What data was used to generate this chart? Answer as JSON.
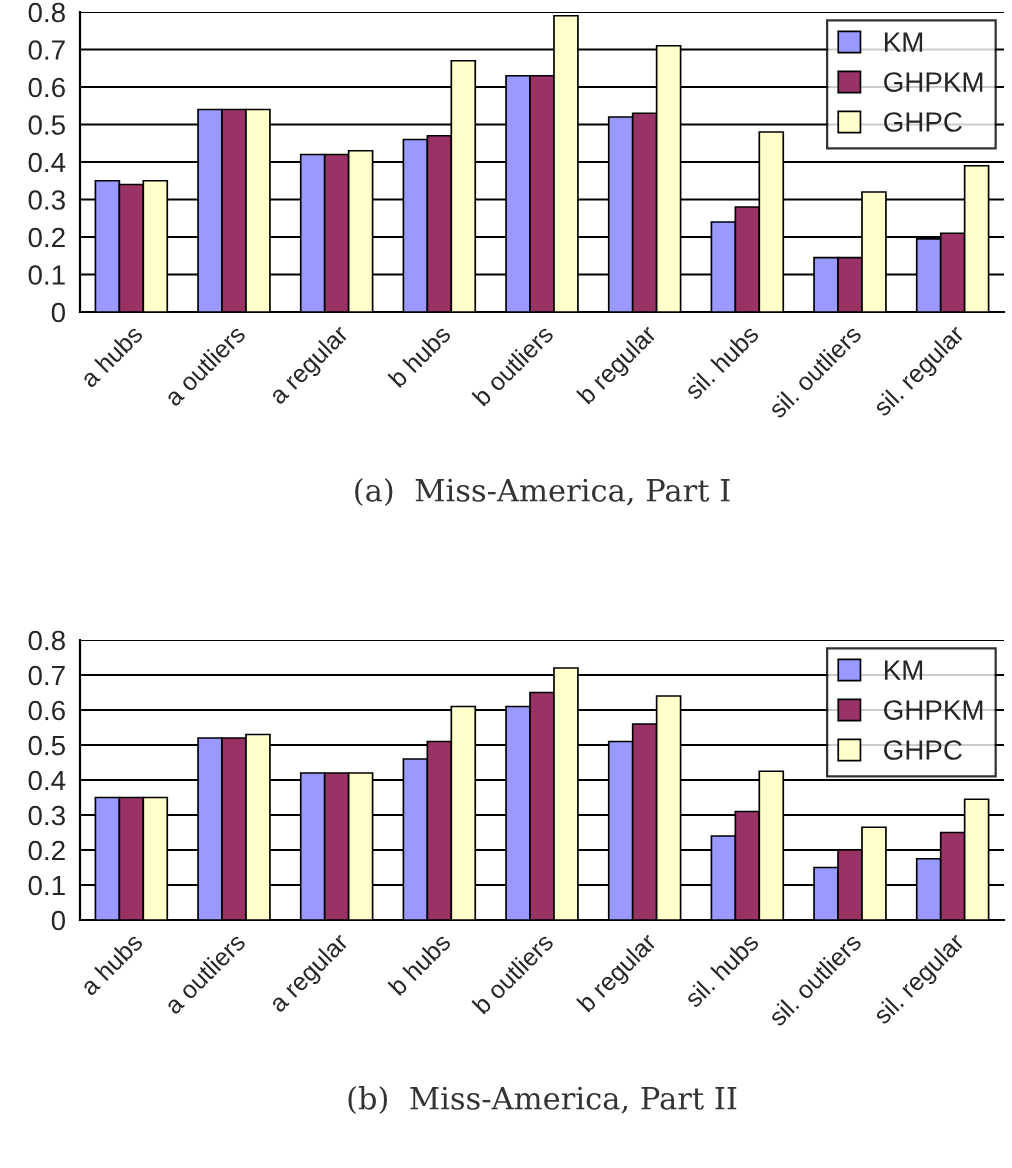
{
  "chart_data": [
    {
      "type": "bar",
      "title": "(a)  Miss-America, Part I",
      "categories": [
        "a hubs",
        "a outliers",
        "a regular",
        "b hubs",
        "b outliers",
        "b regular",
        "sil. hubs",
        "sil. outliers",
        "sil. regular"
      ],
      "series": [
        {
          "name": "KM",
          "color": "#9999ff",
          "values": [
            0.35,
            0.54,
            0.42,
            0.46,
            0.63,
            0.52,
            0.24,
            0.145,
            0.195
          ]
        },
        {
          "name": "GHPKM",
          "color": "#993366",
          "values": [
            0.34,
            0.54,
            0.42,
            0.47,
            0.63,
            0.53,
            0.28,
            0.145,
            0.21
          ]
        },
        {
          "name": "GHPC",
          "color": "#ffffcc",
          "values": [
            0.35,
            0.54,
            0.43,
            0.67,
            0.79,
            0.71,
            0.48,
            0.32,
            0.39
          ]
        }
      ],
      "ylim": [
        0,
        0.8
      ],
      "yticks": [
        {
          "value": 0,
          "label": "0"
        },
        0.1,
        0.2,
        0.3,
        0.4,
        0.5,
        0.6,
        0.7,
        0.8
      ],
      "grid": "y",
      "legend": "top right"
    },
    {
      "type": "bar",
      "title": "(b)  Miss-America, Part II",
      "categories": [
        "a hubs",
        "a outliers",
        "a regular",
        "b hubs",
        "b outliers",
        "b regular",
        "sil. hubs",
        "sil. outliers",
        "sil. regular"
      ],
      "series": [
        {
          "name": "KM",
          "color": "#9999ff",
          "values": [
            0.35,
            0.52,
            0.42,
            0.46,
            0.61,
            0.51,
            0.24,
            0.15,
            0.175
          ]
        },
        {
          "name": "GHPKM",
          "color": "#993366",
          "values": [
            0.35,
            0.52,
            0.42,
            0.51,
            0.65,
            0.56,
            0.31,
            0.2,
            0.25
          ]
        },
        {
          "name": "GHPC",
          "color": "#ffffcc",
          "values": [
            0.35,
            0.53,
            0.42,
            0.61,
            0.72,
            0.64,
            0.425,
            0.265,
            0.345
          ]
        }
      ],
      "ylim": [
        0,
        0.8
      ],
      "yticks": [
        {
          "value": 0,
          "label": "0"
        },
        0.1,
        0.2,
        0.3,
        0.4,
        0.5,
        0.6,
        0.7,
        0.8
      ],
      "grid": "y",
      "legend": "top right"
    }
  ]
}
